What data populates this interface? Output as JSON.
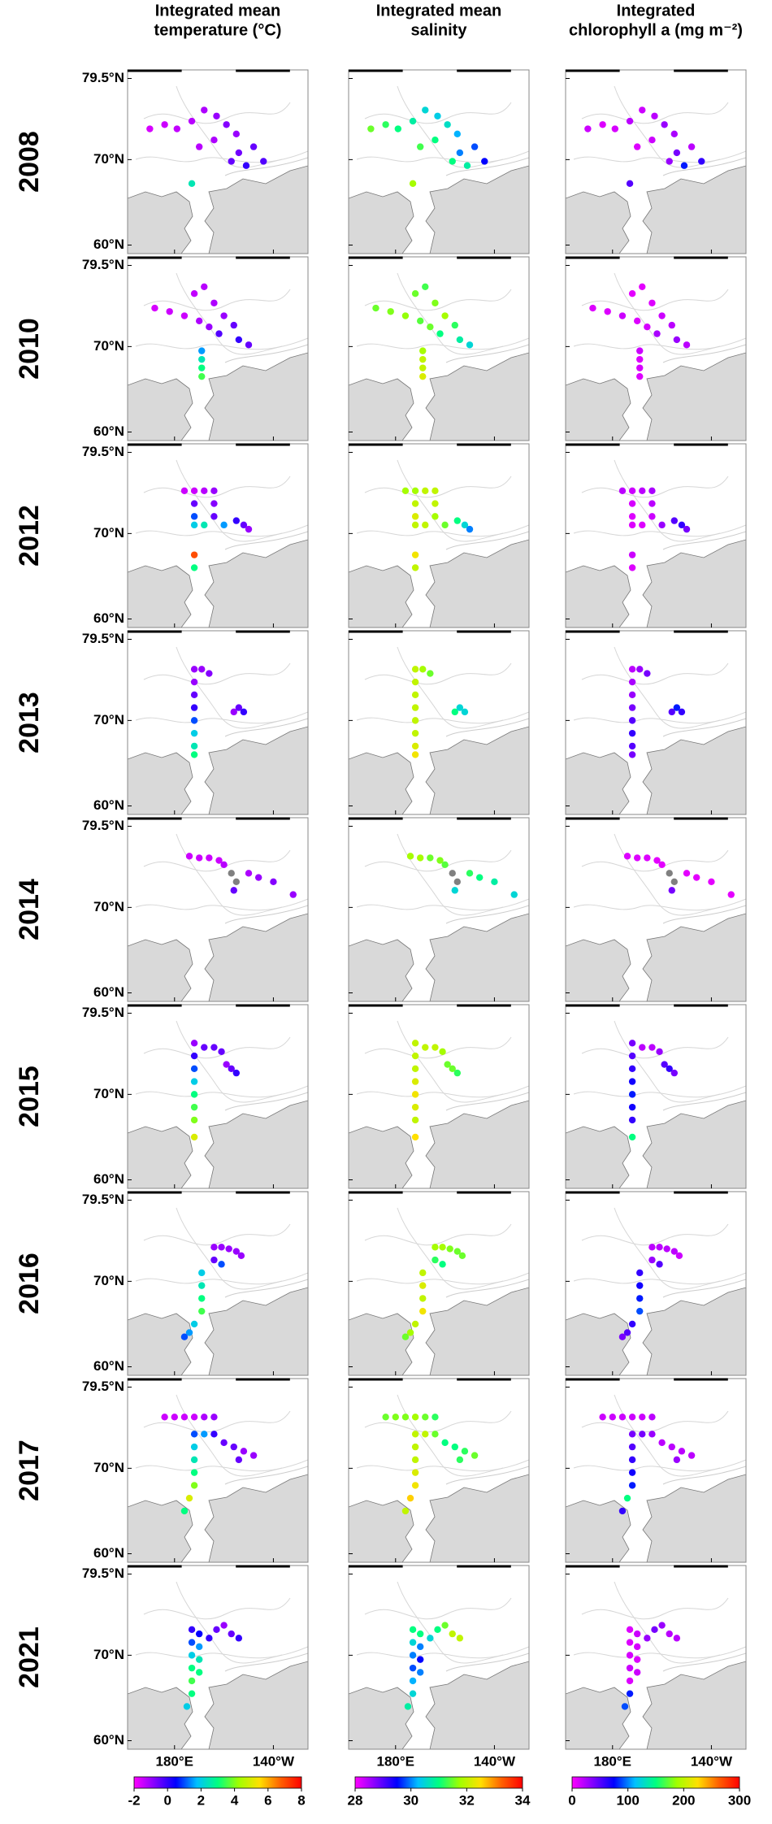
{
  "columns": [
    {
      "title": [
        "Integrated mean",
        "temperature (°C)"
      ],
      "clim": [
        -2,
        8
      ],
      "ticks": [
        -2,
        0,
        2,
        4,
        6,
        8
      ]
    },
    {
      "title": [
        "Integrated mean",
        "salinity"
      ],
      "clim": [
        28,
        34
      ],
      "ticks": [
        28,
        30,
        32,
        34
      ]
    },
    {
      "title": [
        "Integrated",
        "chlorophyll a (mg m⁻²)"
      ],
      "clim": [
        0,
        300
      ],
      "ticks": [
        0,
        100,
        200,
        300
      ]
    }
  ],
  "xlim": [
    161,
    234
  ],
  "ylim": [
    59,
    80.5
  ],
  "lat_ticks": [
    {
      "value": 79.5,
      "label": "79.5°N"
    },
    {
      "value": 70,
      "label": "70°N"
    },
    {
      "value": 60,
      "label": "60°N"
    }
  ],
  "lon_ticks": [
    {
      "value": 180,
      "label": "180°E"
    },
    {
      "value": 220,
      "label": "140°W"
    }
  ],
  "colormap": [
    "#ff00ff",
    "#8000ff",
    "#0000ff",
    "#00c0ff",
    "#00ff80",
    "#a0ff00",
    "#ffe000",
    "#ff6000",
    "#ff0000"
  ],
  "missing_color": "#808080",
  "rows": [
    {
      "year": "2008",
      "lon": [
        170,
        176,
        181,
        187,
        192,
        197,
        201,
        205,
        196,
        190,
        206,
        212,
        216,
        209,
        203,
        187
      ],
      "lat": [
        73.6,
        74.1,
        73.6,
        74.5,
        75.8,
        75.1,
        74.1,
        73,
        72.3,
        71.5,
        70.8,
        71.5,
        69.8,
        69.3,
        69.8,
        67.2
      ],
      "values": [
        [
          -1.6,
          -1.5,
          -1.4,
          -1.3,
          -1.2,
          -1,
          -0.8,
          -1,
          -1.2,
          -1.3,
          -0.6,
          -0.5,
          -0.3,
          0,
          -0.5,
          2.5
        ],
        [
          31.5,
          31.2,
          31,
          30.8,
          30.5,
          30.4,
          30.6,
          30.2,
          31,
          31.3,
          30,
          29.8,
          29.5,
          30.8,
          31,
          31.8
        ],
        [
          15,
          10,
          12,
          20,
          15,
          20,
          30,
          25,
          15,
          10,
          40,
          20,
          60,
          80,
          30,
          50
        ]
      ]
    },
    {
      "year": "2010",
      "lon": [
        172,
        178,
        184,
        188,
        192,
        196,
        200,
        204,
        194,
        190,
        198,
        206,
        210,
        191,
        191,
        191,
        191
      ],
      "lat": [
        74.5,
        74.1,
        73.6,
        76.2,
        77,
        75.1,
        73.6,
        72.5,
        72.3,
        73,
        71.5,
        70.8,
        70.2,
        69.5,
        68.5,
        67.5,
        66.5
      ],
      "values": [
        [
          -1.6,
          -1.5,
          -1.5,
          -1.4,
          -1.3,
          -1.2,
          -1,
          -0.5,
          -1,
          -1.2,
          -0.3,
          0,
          -0.5,
          1.5,
          2.5,
          3,
          3.5
        ],
        [
          31.5,
          31.6,
          31.7,
          31.5,
          31.3,
          31.6,
          31.8,
          31.2,
          31.5,
          31.4,
          31,
          30.8,
          30.5,
          31.8,
          32,
          32,
          32.2
        ],
        [
          10,
          10,
          15,
          8,
          8,
          10,
          15,
          20,
          12,
          10,
          25,
          30,
          20,
          15,
          10,
          12,
          10
        ]
      ]
    },
    {
      "year": "2012",
      "lon": [
        184,
        188,
        192,
        196,
        196,
        196,
        188,
        188,
        188,
        188,
        188,
        192,
        200,
        205,
        208,
        210
      ],
      "lat": [
        75,
        75,
        75,
        75,
        73.5,
        72,
        73.5,
        72,
        71,
        67.5,
        66,
        71,
        71,
        71.5,
        71,
        70.5
      ],
      "values": [
        [
          -1.5,
          -1.5,
          -1.3,
          -1,
          -0.8,
          -0.5,
          -0.5,
          1,
          2,
          7,
          3,
          2.5,
          1.5,
          0,
          -0.5,
          -1
        ],
        [
          31.8,
          31.8,
          32,
          32,
          32,
          31.8,
          32,
          32.2,
          32,
          32.4,
          32,
          32,
          31.5,
          31,
          30.5,
          30
        ],
        [
          20,
          15,
          20,
          25,
          20,
          15,
          12,
          10,
          10,
          15,
          10,
          10,
          30,
          50,
          60,
          40
        ]
      ]
    },
    {
      "year": "2013",
      "lon": [
        188,
        188,
        188,
        188,
        188,
        188,
        188,
        188,
        191,
        194,
        204,
        206,
        208
      ],
      "lat": [
        76,
        74.5,
        73,
        71.5,
        70,
        68.5,
        67,
        66,
        76,
        75.5,
        71,
        71.5,
        71
      ],
      "values": [
        [
          -1,
          -1,
          -0.5,
          0,
          1,
          2,
          2.5,
          3,
          -1,
          -0.8,
          -1,
          -0.5,
          0
        ],
        [
          32,
          32,
          32,
          32,
          32,
          32,
          32.2,
          32.4,
          31.8,
          31.5,
          31,
          30.5,
          30.5
        ],
        [
          20,
          25,
          30,
          40,
          50,
          60,
          50,
          40,
          30,
          40,
          50,
          80,
          60
        ]
      ]
    },
    {
      "year": "2014",
      "lon": [
        186,
        190,
        194,
        198,
        200,
        203,
        205,
        210,
        214,
        220,
        228,
        204
      ],
      "lat": [
        76,
        75.8,
        75.8,
        75.5,
        75,
        74,
        73,
        74,
        73.5,
        73,
        71.5,
        72
      ],
      "values": [
        [
          -1.5,
          -1.5,
          -1.5,
          -1.5,
          -1.3,
          null,
          null,
          -1.2,
          -1,
          -0.8,
          -1,
          -0.5
        ],
        [
          31.8,
          31.8,
          31.5,
          31.6,
          31.4,
          null,
          null,
          31.2,
          31,
          30.8,
          30.5,
          30.5
        ],
        [
          10,
          10,
          10,
          8,
          8,
          null,
          null,
          8,
          8,
          8,
          8,
          40
        ]
      ]
    },
    {
      "year": "2015",
      "lon": [
        188,
        188,
        188,
        188,
        188,
        188,
        188,
        188,
        192,
        196,
        199,
        201,
        203,
        205
      ],
      "lat": [
        76,
        74.5,
        73,
        71.5,
        70,
        68.5,
        67,
        65,
        75.5,
        75.5,
        75,
        73.5,
        73,
        72.5
      ],
      "values": [
        [
          -1,
          0,
          1,
          2,
          3,
          3.5,
          4,
          5,
          -0.5,
          -0.5,
          -0.5,
          -1,
          -0.5,
          0
        ],
        [
          32,
          32,
          32,
          32.2,
          32.4,
          32.2,
          32,
          32.5,
          32,
          32,
          31.8,
          31.5,
          31.5,
          31.2
        ],
        [
          40,
          50,
          60,
          70,
          80,
          70,
          60,
          150,
          20,
          20,
          30,
          50,
          60,
          40
        ]
      ]
    },
    {
      "year": "2016",
      "lon": [
        196,
        199,
        202,
        205,
        207,
        196,
        199,
        191,
        191,
        191,
        191,
        188,
        186,
        184
      ],
      "lat": [
        74,
        74,
        73.8,
        73.5,
        73,
        72.5,
        72,
        71,
        69.5,
        68,
        66.5,
        65,
        64,
        63.5
      ],
      "values": [
        [
          -1,
          -1,
          -1,
          -1,
          -1,
          -0.5,
          1,
          2,
          2.5,
          3,
          3.5,
          2,
          1.5,
          1
        ],
        [
          31.8,
          31.8,
          31.6,
          31.5,
          31.5,
          31.2,
          31,
          32,
          32.2,
          32,
          32.4,
          32,
          31.8,
          31.5
        ],
        [
          20,
          20,
          20,
          20,
          15,
          30,
          50,
          60,
          70,
          80,
          90,
          60,
          50,
          40
        ]
      ]
    },
    {
      "year": "2017",
      "lon": [
        176,
        180,
        184,
        188,
        192,
        196,
        188,
        188,
        188,
        188,
        188,
        186,
        184,
        192,
        196,
        200,
        204,
        208,
        212,
        206
      ],
      "lat": [
        76,
        76,
        76,
        76,
        76,
        76,
        74,
        72.5,
        71,
        69.5,
        68,
        66.5,
        65,
        74,
        74,
        73,
        72.5,
        72,
        71.5,
        71
      ],
      "values": [
        [
          -1.5,
          -1.5,
          -1.5,
          -1.5,
          -1.2,
          -1,
          1,
          2,
          2.5,
          3,
          4,
          5,
          3,
          1.5,
          0,
          -0.5,
          -0.5,
          -1,
          -1,
          -0.5
        ],
        [
          31.5,
          31.6,
          31.6,
          31.8,
          31.5,
          31.2,
          32,
          32,
          32,
          32.2,
          32.4,
          32.6,
          32,
          32,
          31.5,
          31,
          31,
          31.2,
          31.5,
          31.2
        ],
        [
          15,
          15,
          15,
          15,
          15,
          20,
          40,
          50,
          60,
          70,
          80,
          150,
          60,
          40,
          30,
          20,
          20,
          20,
          20,
          30
        ]
      ]
    },
    {
      "year": "2021",
      "lon": [
        187,
        187,
        187,
        187,
        187,
        187,
        190,
        190,
        190,
        190,
        194,
        197,
        200,
        203,
        206,
        185
      ],
      "lat": [
        73,
        71.5,
        70,
        68.5,
        67,
        65.5,
        72.5,
        71,
        69.5,
        68,
        72,
        73,
        73.5,
        72.5,
        72,
        64
      ],
      "values": [
        [
          0,
          1,
          2,
          3,
          3.5,
          3,
          0.5,
          1.5,
          2.5,
          3,
          0,
          -0.5,
          -1,
          -0.5,
          0,
          2
        ],
        [
          31,
          30.5,
          30,
          29.8,
          30.2,
          30.5,
          31,
          30,
          29.5,
          30,
          30.5,
          31,
          31.5,
          32,
          32,
          30.8
        ],
        [
          10,
          10,
          12,
          15,
          10,
          80,
          15,
          12,
          10,
          15,
          30,
          40,
          30,
          20,
          20,
          90
        ]
      ]
    }
  ]
}
